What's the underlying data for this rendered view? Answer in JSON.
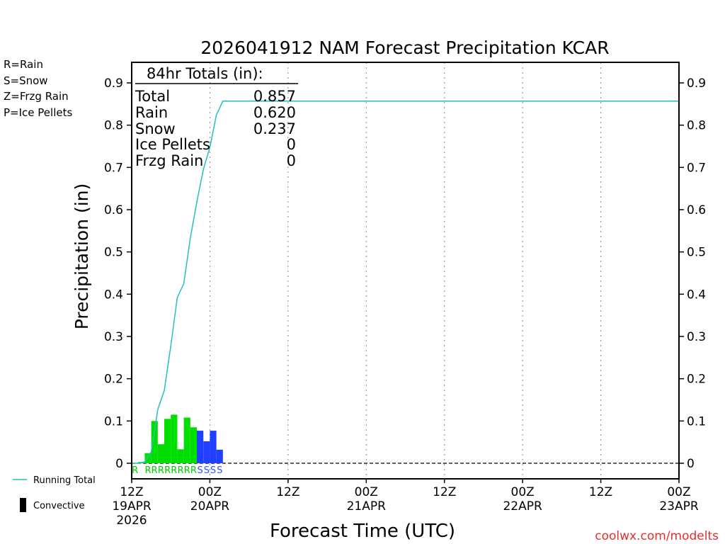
{
  "chart_data": {
    "type": "bar",
    "title": "2026041912 NAM Forecast Precipitation KCAR",
    "xlabel": "Forecast Time (UTC)",
    "ylabel": "Precipitation (in)",
    "ylim": [
      -0.04,
      0.94
    ],
    "yticks": [
      0,
      0.1,
      0.2,
      0.3,
      0.4,
      0.5,
      0.6,
      0.7,
      0.8,
      0.9
    ],
    "ytick_labels": [
      "0",
      "0.1",
      "0.2",
      "0.3",
      "0.4",
      "0.5",
      "0.6",
      "0.7",
      "0.8",
      "0.9"
    ],
    "xlim_hours": [
      0,
      84
    ],
    "xticks": [
      {
        "hour": 0,
        "line1": "12Z",
        "line2": "19APR",
        "line3": "2026"
      },
      {
        "hour": 12,
        "line1": "00Z",
        "line2": "20APR",
        "line3": ""
      },
      {
        "hour": 24,
        "line1": "12Z",
        "line2": "",
        "line3": ""
      },
      {
        "hour": 36,
        "line1": "00Z",
        "line2": "21APR",
        "line3": ""
      },
      {
        "hour": 48,
        "line1": "12Z",
        "line2": "",
        "line3": ""
      },
      {
        "hour": 60,
        "line1": "00Z",
        "line2": "22APR",
        "line3": ""
      },
      {
        "hour": 72,
        "line1": "12Z",
        "line2": "",
        "line3": ""
      },
      {
        "hour": 84,
        "line1": "00Z",
        "line2": "23APR",
        "line3": ""
      }
    ],
    "bar_hours": [
      2,
      3,
      4,
      5,
      6,
      7,
      8,
      9,
      10,
      11,
      12,
      13,
      14
    ],
    "bar_values": [
      0.003,
      0.024,
      0.1,
      0.045,
      0.105,
      0.115,
      0.033,
      0.108,
      0.085,
      0.077,
      0.052,
      0.077,
      0.032
    ],
    "bar_types": [
      "R",
      "R",
      "R",
      "R",
      "R",
      "R",
      "R",
      "R",
      "R",
      "S",
      "S",
      "S",
      "S"
    ],
    "type_label_hours": [
      1,
      3,
      4,
      5,
      6,
      7,
      8,
      9,
      10,
      11,
      12,
      13,
      14
    ],
    "type_labels": [
      "R",
      "R",
      "R",
      "R",
      "R",
      "R",
      "R",
      "R",
      "R",
      "S",
      "S",
      "S",
      "S"
    ],
    "running_total": {
      "hours": [
        0,
        1,
        2,
        3,
        4,
        5,
        6,
        7,
        8,
        9,
        10,
        11,
        12,
        13,
        14,
        84
      ],
      "values": [
        0,
        0,
        0.003,
        0.027,
        0.127,
        0.172,
        0.277,
        0.392,
        0.425,
        0.533,
        0.618,
        0.695,
        0.747,
        0.824,
        0.857,
        0.857
      ]
    },
    "totals_box": {
      "header": "84hr Totals (in):",
      "rows": [
        {
          "label": "Total",
          "value": "0.857"
        },
        {
          "label": "Rain",
          "value": "0.620"
        },
        {
          "label": "Snow",
          "value": "0.237"
        },
        {
          "label": "Ice Pellets",
          "value": "0"
        },
        {
          "label": "Frzg Rain",
          "value": "0"
        }
      ]
    },
    "precip_type_legend": [
      {
        "text": "R=Rain",
        "color": "#00cc00"
      },
      {
        "text": "S=Snow",
        "color": "#3050ff"
      },
      {
        "text": "Z=Frzg Rain",
        "color": "#f08030"
      },
      {
        "text": "P=Ice Pellets",
        "color": "#e020a0"
      }
    ],
    "series_legend": {
      "running_total_label": "Running Total",
      "convective_label": "Convective"
    },
    "colors": {
      "rain": "#00dd00",
      "snow": "#2040ff",
      "running_total": "#20c0c0",
      "rain_label": "#00cc00",
      "snow_label": "#3050ff",
      "grid": "#888888",
      "credit": "#e03030"
    },
    "credit": "coolwx.com/modelts"
  }
}
